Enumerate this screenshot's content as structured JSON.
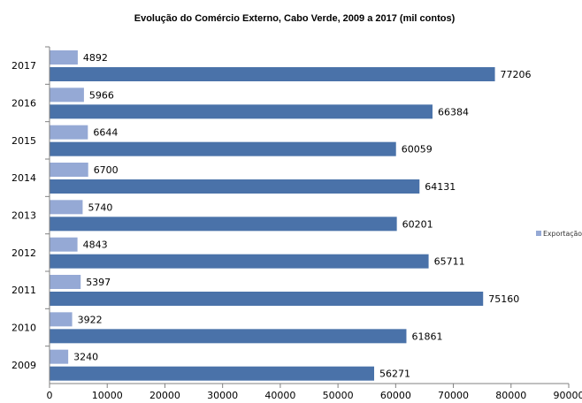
{
  "chart_data": {
    "type": "bar",
    "orientation": "horizontal",
    "title": "Evolução do Comércio Externo, Cabo Verde, 2009 a  2017 (mil contos)",
    "categories": [
      "2009",
      "2010",
      "2011",
      "2012",
      "2013",
      "2014",
      "2015",
      "2016",
      "2017"
    ],
    "series": [
      {
        "name": "Exportação",
        "color": "#95a9d5",
        "values": [
          3240,
          3922,
          5397,
          4843,
          5740,
          6700,
          6644,
          5966,
          4892
        ]
      },
      {
        "color": "#4a72a9",
        "values": [
          56271,
          61861,
          75160,
          65711,
          60201,
          64131,
          60059,
          66384,
          77206
        ]
      }
    ],
    "xlim": [
      0,
      90000
    ],
    "x_ticks": [
      0,
      10000,
      20000,
      30000,
      40000,
      50000,
      60000,
      70000,
      80000,
      90000
    ],
    "grid": false,
    "legend_position": "right",
    "data_labels": true
  }
}
